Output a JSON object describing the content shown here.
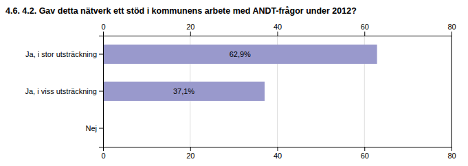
{
  "chart_data": {
    "type": "bar",
    "orientation": "horizontal",
    "title": "4.6. 4.2. Gav detta nätverk ett stöd i kommunens arbete med ANDT-frågor under 2012?",
    "categories": [
      "Ja, i stor utsträckning",
      "Ja, i viss utsträckning",
      "Nej"
    ],
    "values": [
      62.9,
      37.1,
      0.0
    ],
    "value_labels": [
      "62,9%",
      "37,1%",
      null
    ],
    "color": "#9999cc",
    "xlim": [
      0,
      80
    ],
    "xticks": [
      0,
      20,
      40,
      60,
      80
    ],
    "grid": true
  }
}
